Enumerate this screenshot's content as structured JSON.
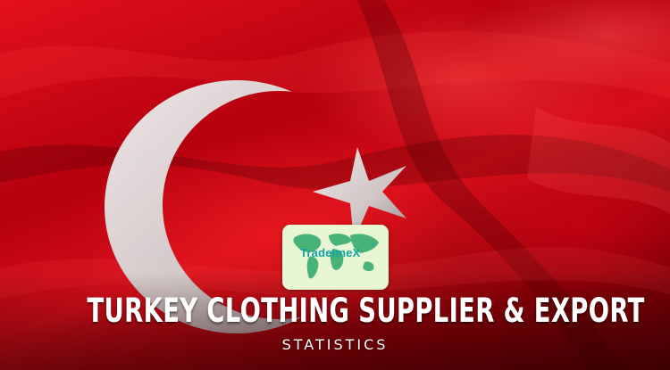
{
  "banner": {
    "title": "TURKEY CLOTHING SUPPLIER & EXPORT",
    "subtitle": "STATISTICS"
  },
  "logo": {
    "brand": "TradeImeX",
    "mark": "®"
  },
  "colors": {
    "flag_red": "#d80e1a",
    "flag_white": "#e6e6e6",
    "logo_background": "#e9f6d4",
    "logo_text": "#14a3a3",
    "title_text": "#ffffff"
  }
}
